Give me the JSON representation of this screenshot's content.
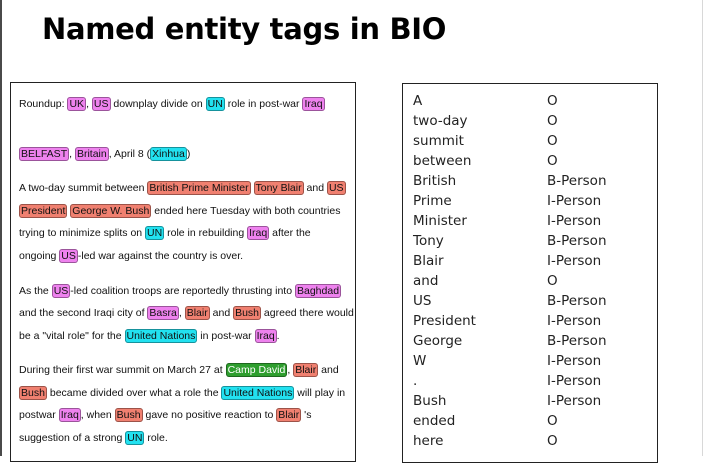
{
  "slide": {
    "title": "Named entity tags in BIO"
  },
  "document": {
    "colors": {
      "LOC": "#ee82ee",
      "ORG": "#22e1f0",
      "PER": "#f08070",
      "MISC": "#2e9e2e"
    },
    "lines": [
      [
        {
          "t": "Roundup: "
        },
        {
          "t": "UK",
          "e": "LOC"
        },
        {
          "t": ", "
        },
        {
          "t": "US",
          "e": "LOC"
        },
        {
          "t": " downplay divide on "
        },
        {
          "t": "UN",
          "e": "ORG"
        },
        {
          "t": " role in post-war "
        },
        {
          "t": "Iraq",
          "e": "LOC"
        }
      ],
      [
        {
          "t": "BELFAST",
          "e": "LOC"
        },
        {
          "t": ", "
        },
        {
          "t": "Britain",
          "e": "LOC"
        },
        {
          "t": ", April 8 ("
        },
        {
          "t": "Xinhua",
          "e": "ORG"
        },
        {
          "t": ")"
        }
      ],
      [
        {
          "t": "A two-day summit between "
        },
        {
          "t": "British Prime Minister",
          "e": "PER"
        },
        {
          "t": " "
        },
        {
          "t": "Tony Blair",
          "e": "PER"
        },
        {
          "t": " and "
        },
        {
          "t": "US",
          "e": "PER"
        }
      ],
      [
        {
          "t": "President",
          "e": "PER"
        },
        {
          "t": " "
        },
        {
          "t": "George W. Bush",
          "e": "PER"
        },
        {
          "t": " ended here Tuesday with both countries"
        }
      ],
      [
        {
          "t": "trying to minimize splits on "
        },
        {
          "t": "UN",
          "e": "ORG"
        },
        {
          "t": " role in rebuilding "
        },
        {
          "t": "Iraq",
          "e": "LOC"
        },
        {
          "t": " after the"
        }
      ],
      [
        {
          "t": "ongoing "
        },
        {
          "t": "US",
          "e": "LOC"
        },
        {
          "t": "-led war against the country is over."
        }
      ],
      [
        {
          "t": "As the "
        },
        {
          "t": "US",
          "e": "LOC"
        },
        {
          "t": "-led coalition troops are reportedly thrusting into "
        },
        {
          "t": "Baghdad",
          "e": "LOC"
        }
      ],
      [
        {
          "t": "and the second Iraqi city of "
        },
        {
          "t": "Basra",
          "e": "LOC"
        },
        {
          "t": ", "
        },
        {
          "t": "Blair",
          "e": "PER"
        },
        {
          "t": " and "
        },
        {
          "t": "Bush",
          "e": "PER"
        },
        {
          "t": " agreed there would"
        }
      ],
      [
        {
          "t": "be a \"vital role\" for the "
        },
        {
          "t": "United Nations",
          "e": "ORG"
        },
        {
          "t": " in post-war "
        },
        {
          "t": "Iraq",
          "e": "LOC"
        },
        {
          "t": "."
        }
      ],
      [
        {
          "t": "During their first war summit on March 27 at "
        },
        {
          "t": "Camp David",
          "e": "MISC"
        },
        {
          "t": ", "
        },
        {
          "t": "Blair",
          "e": "PER"
        },
        {
          "t": " and"
        }
      ],
      [
        {
          "t": "Bush",
          "e": "PER"
        },
        {
          "t": " became divided over what a role the "
        },
        {
          "t": "United Nations",
          "e": "ORG"
        },
        {
          "t": " will play in"
        }
      ],
      [
        {
          "t": "postwar "
        },
        {
          "t": "Iraq",
          "e": "LOC"
        },
        {
          "t": ", when "
        },
        {
          "t": "Bush",
          "e": "PER"
        },
        {
          "t": " gave no positive reaction to "
        },
        {
          "t": "Blair",
          "e": "PER"
        },
        {
          "t": " 's"
        }
      ],
      [
        {
          "t": "suggestion of a strong "
        },
        {
          "t": "UN",
          "e": "ORG"
        },
        {
          "t": " role."
        }
      ]
    ]
  },
  "bio_table": {
    "rows": [
      {
        "token": "A",
        "tag": "O"
      },
      {
        "token": "two-day",
        "tag": "O"
      },
      {
        "token": "summit",
        "tag": "O"
      },
      {
        "token": "between",
        "tag": "O"
      },
      {
        "token": "British",
        "tag": "B-Person"
      },
      {
        "token": "Prime",
        "tag": "I-Person"
      },
      {
        "token": "Minister",
        "tag": "I-Person"
      },
      {
        "token": "Tony",
        "tag": "B-Person"
      },
      {
        "token": "Blair",
        "tag": "I-Person"
      },
      {
        "token": "and",
        "tag": "O"
      },
      {
        "token": "US",
        "tag": "B-Person"
      },
      {
        "token": "President",
        "tag": "I-Person"
      },
      {
        "token": "George",
        "tag": "B-Person"
      },
      {
        "token": "W",
        "tag": "I-Person"
      },
      {
        "token": ".",
        "tag": "I-Person"
      },
      {
        "token": "Bush",
        "tag": "I-Person"
      },
      {
        "token": "ended",
        "tag": "O"
      },
      {
        "token": "here",
        "tag": "O"
      }
    ]
  }
}
